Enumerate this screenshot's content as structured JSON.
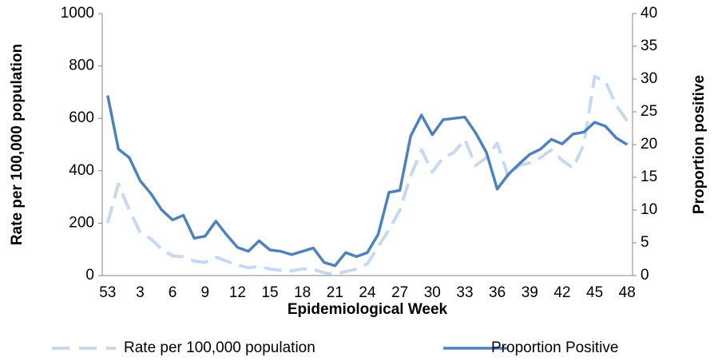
{
  "chart_data": {
    "type": "line",
    "x_label": "Epidemiological Week",
    "y_label": "Rate per 100,000 population",
    "y2_label": "Proportion positive",
    "categories": [
      53,
      null,
      null,
      3,
      null,
      null,
      6,
      null,
      null,
      9,
      null,
      null,
      12,
      null,
      null,
      15,
      null,
      null,
      18,
      null,
      null,
      21,
      null,
      null,
      24,
      null,
      null,
      27,
      null,
      null,
      30,
      null,
      null,
      33,
      null,
      null,
      36,
      null,
      null,
      39,
      null,
      null,
      42,
      null,
      null,
      45,
      null,
      null,
      48
    ],
    "series": [
      {
        "name": "Rate per 100,000 population",
        "color": "#c6d9f1",
        "line_style": "dashed",
        "values": [
          200,
          350,
          250,
          165,
          140,
          100,
          75,
          72,
          55,
          50,
          70,
          55,
          40,
          30,
          35,
          25,
          20,
          18,
          25,
          25,
          10,
          5,
          15,
          25,
          45,
          110,
          175,
          250,
          380,
          480,
          395,
          450,
          470,
          520,
          420,
          450,
          505,
          380,
          420,
          430,
          450,
          480,
          440,
          410,
          500,
          760,
          740,
          650,
          590
        ]
      },
      {
        "name": "Proportion Positive",
        "color": "#4f81bd",
        "line_style": "solid",
        "axis": "y2",
        "values": [
          27.5,
          19.3,
          18,
          14.5,
          12.5,
          10,
          8.5,
          9.2,
          5.7,
          6,
          8.3,
          6.2,
          4.3,
          3.7,
          5.3,
          3.9,
          3.7,
          3.2,
          3.7,
          4.2,
          2,
          1.5,
          3.5,
          2.9,
          3.5,
          6.3,
          12.7,
          13,
          21.3,
          24.5,
          21.5,
          23.8,
          24,
          24.2,
          21.8,
          18.8,
          13.2,
          15.4,
          17,
          18.5,
          19.3,
          20.8,
          20.1,
          21.6,
          21.9,
          23.4,
          22.8,
          21,
          20
        ]
      }
    ],
    "ylim": [
      0,
      1000
    ],
    "yticks": [
      0,
      200,
      400,
      600,
      800,
      1000
    ],
    "y2lim": [
      0,
      40
    ],
    "y2ticks": [
      0,
      5,
      10,
      15,
      20,
      25,
      30,
      35,
      40
    ],
    "grid": false,
    "legend": "bottom"
  }
}
